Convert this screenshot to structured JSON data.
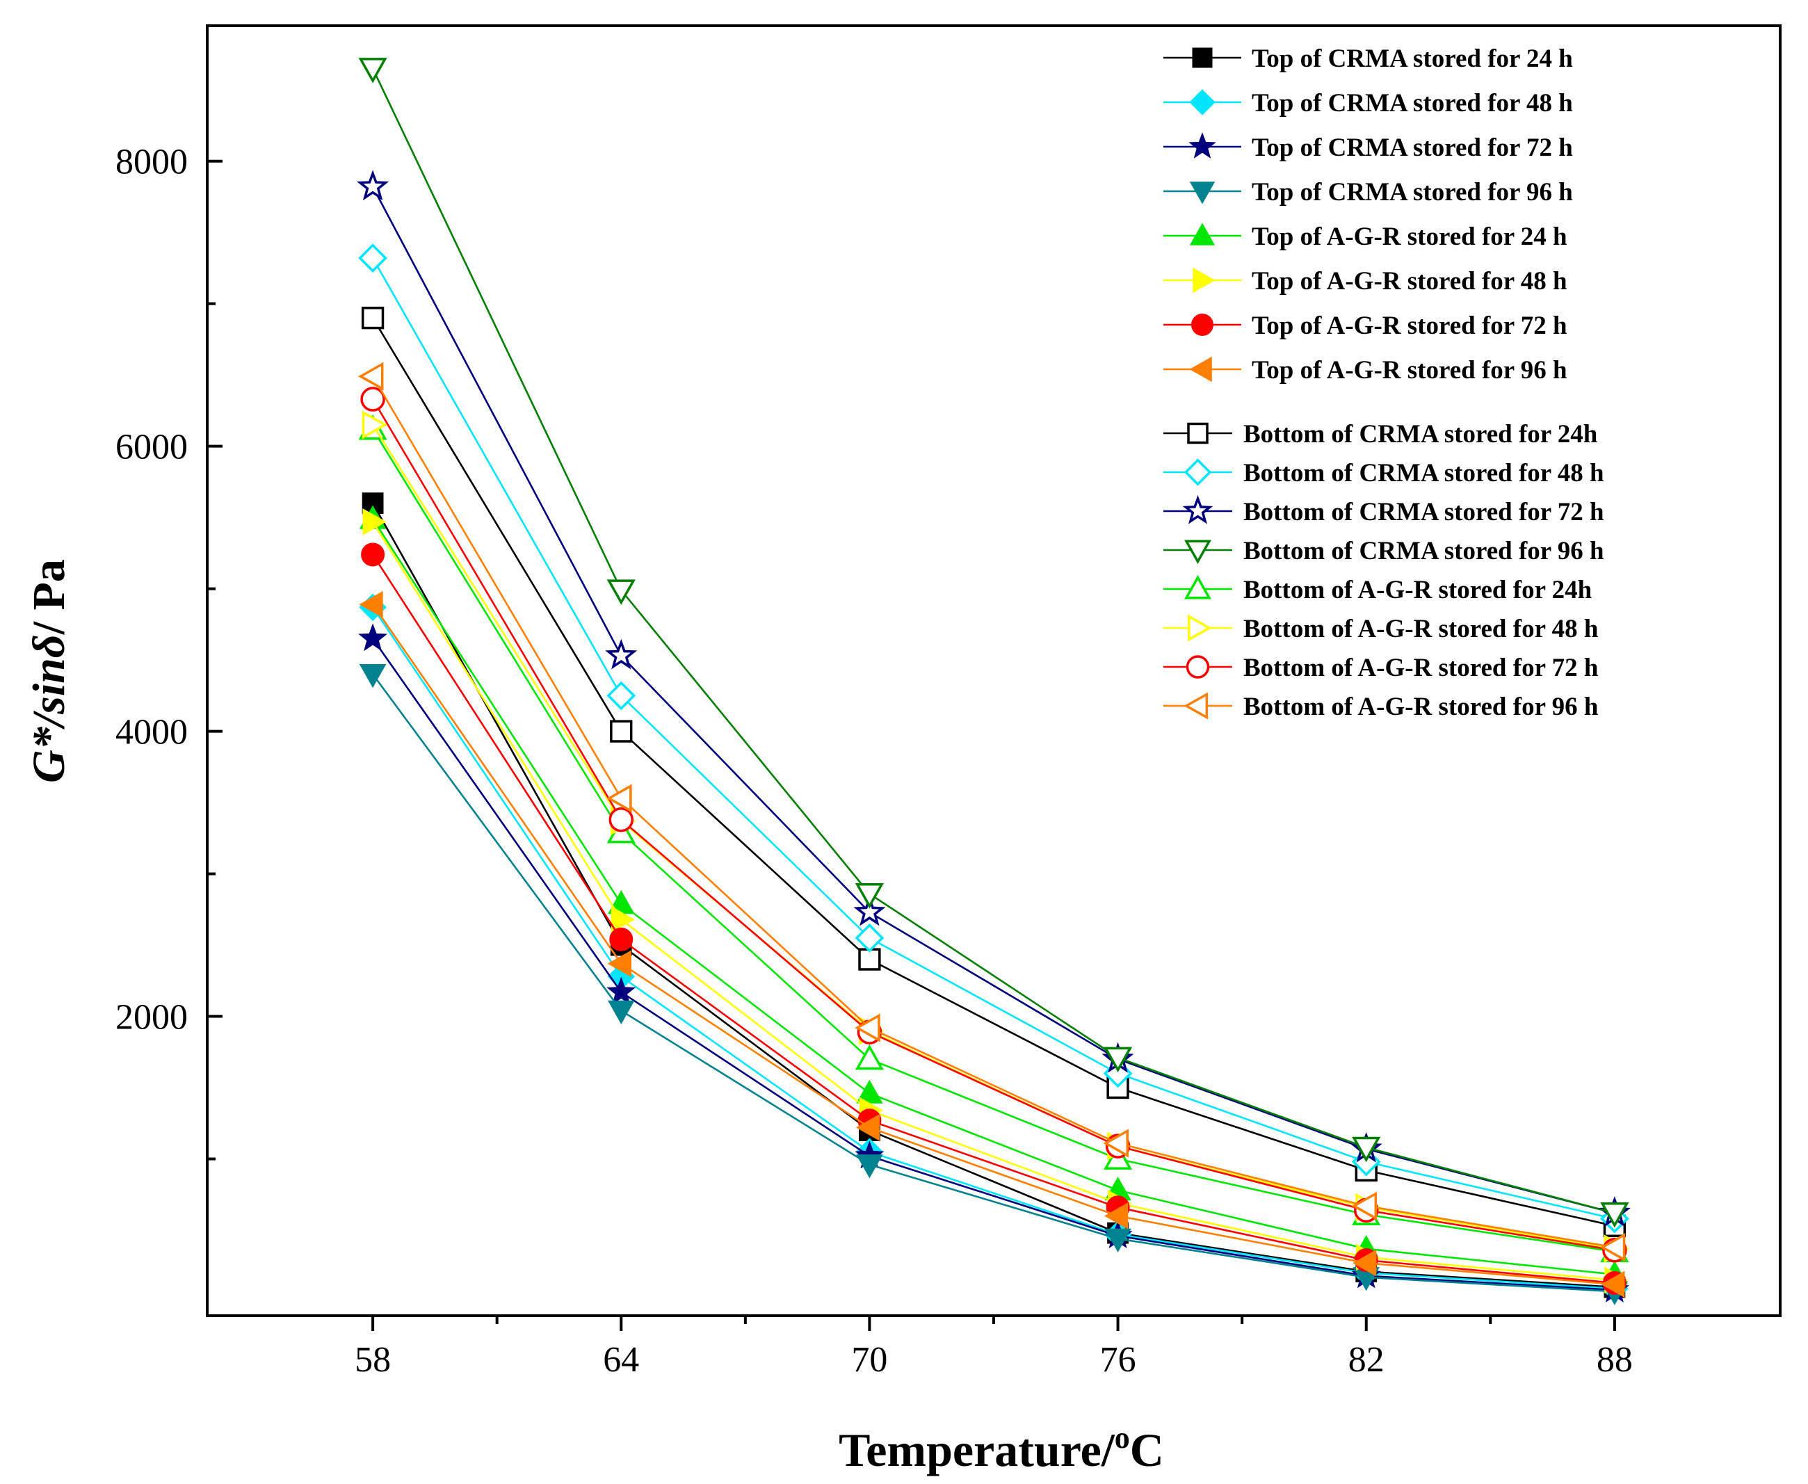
{
  "chart_data": {
    "type": "line",
    "title": "",
    "xlabel": "Temperature/",
    "xlabel_sup": "o",
    "xlabel_unit": "C",
    "ylabel_italic": "G*/sin",
    "ylabel_delta": "δ",
    "ylabel_unit": "/ Pa",
    "x": [
      58,
      64,
      70,
      76,
      82,
      88
    ],
    "xlim": [
      54,
      92
    ],
    "ylim": [
      -100,
      8950
    ],
    "y_ticks_major": [
      2000,
      4000,
      6000,
      8000
    ],
    "y_ticks_minor": [
      1000,
      3000,
      5000,
      7000
    ],
    "x_tick_labels": [
      "58",
      "64",
      "70",
      "76",
      "82",
      "88"
    ],
    "y_tick_labels": [
      "2000",
      "4000",
      "6000",
      "8000"
    ],
    "legend_position": "top-right",
    "series": [
      {
        "name": "Top of CRMA stored for 24 h",
        "color": "#000000",
        "marker": "square",
        "filled": true,
        "values": [
          5600,
          2500,
          1200,
          480,
          210,
          100
        ]
      },
      {
        "name": "Top of CRMA stored for 48 h",
        "color": "#00e5ff",
        "marker": "diamond",
        "filled": true,
        "values": [
          4870,
          2280,
          1050,
          470,
          200,
          90
        ]
      },
      {
        "name": "Top of CRMA stored for 72 h",
        "color": "#00007f",
        "marker": "star",
        "filled": true,
        "values": [
          4650,
          2170,
          1020,
          460,
          180,
          80
        ]
      },
      {
        "name": "Top of CRMA stored for 96 h",
        "color": "#00838f",
        "marker": "triangle-down",
        "filled": true,
        "values": [
          4400,
          2040,
          960,
          440,
          170,
          70
        ]
      },
      {
        "name": "Top of A-G-R stored for 24 h",
        "color": "#00e600",
        "marker": "triangle-up",
        "filled": true,
        "values": [
          5490,
          2790,
          1460,
          780,
          370,
          190
        ]
      },
      {
        "name": "Top of A-G-R stored for 48 h",
        "color": "#ffff00",
        "marker": "triangle-right",
        "filled": true,
        "values": [
          5470,
          2680,
          1340,
          690,
          310,
          150
        ]
      },
      {
        "name": "Top of A-G-R stored for 72 h",
        "color": "#ff0000",
        "marker": "circle",
        "filled": true,
        "values": [
          5240,
          2540,
          1270,
          660,
          290,
          130
        ]
      },
      {
        "name": "Top of A-G-R stored for 96 h",
        "color": "#ff8000",
        "marker": "triangle-left",
        "filled": true,
        "values": [
          4890,
          2370,
          1220,
          600,
          270,
          120
        ]
      },
      {
        "name": "Bottom of CRMA stored for 24h",
        "color": "#000000",
        "marker": "square",
        "filled": false,
        "values": [
          6900,
          4000,
          2400,
          1500,
          920,
          530
        ]
      },
      {
        "name": "Bottom of CRMA stored for 48 h",
        "color": "#00e5ff",
        "marker": "diamond",
        "filled": false,
        "values": [
          7320,
          4250,
          2550,
          1600,
          980,
          580
        ]
      },
      {
        "name": "Bottom of CRMA stored for 72 h",
        "color": "#00007f",
        "marker": "star",
        "filled": false,
        "values": [
          7820,
          4530,
          2730,
          1700,
          1070,
          620
        ]
      },
      {
        "name": "Bottom of CRMA stored for 96 h",
        "color": "#007f00",
        "marker": "triangle-down",
        "filled": false,
        "values": [
          8650,
          4990,
          2860,
          1710,
          1080,
          620
        ]
      },
      {
        "name": "Bottom of A-G-R stored for 24h",
        "color": "#00e600",
        "marker": "triangle-up",
        "filled": false,
        "values": [
          6120,
          3290,
          1700,
          1000,
          610,
          350
        ]
      },
      {
        "name": "Bottom of A-G-R stored for 48 h",
        "color": "#ffff00",
        "marker": "triangle-right",
        "filled": false,
        "values": [
          6150,
          3370,
          1900,
          1090,
          660,
          370
        ]
      },
      {
        "name": "Bottom of A-G-R stored for 72 h",
        "color": "#ff0000",
        "marker": "circle",
        "filled": false,
        "values": [
          6330,
          3380,
          1890,
          1090,
          640,
          360
        ]
      },
      {
        "name": "Bottom of A-G-R stored for 96 h",
        "color": "#ff8000",
        "marker": "triangle-left",
        "filled": false,
        "values": [
          6490,
          3530,
          1920,
          1110,
          670,
          380
        ]
      }
    ]
  }
}
